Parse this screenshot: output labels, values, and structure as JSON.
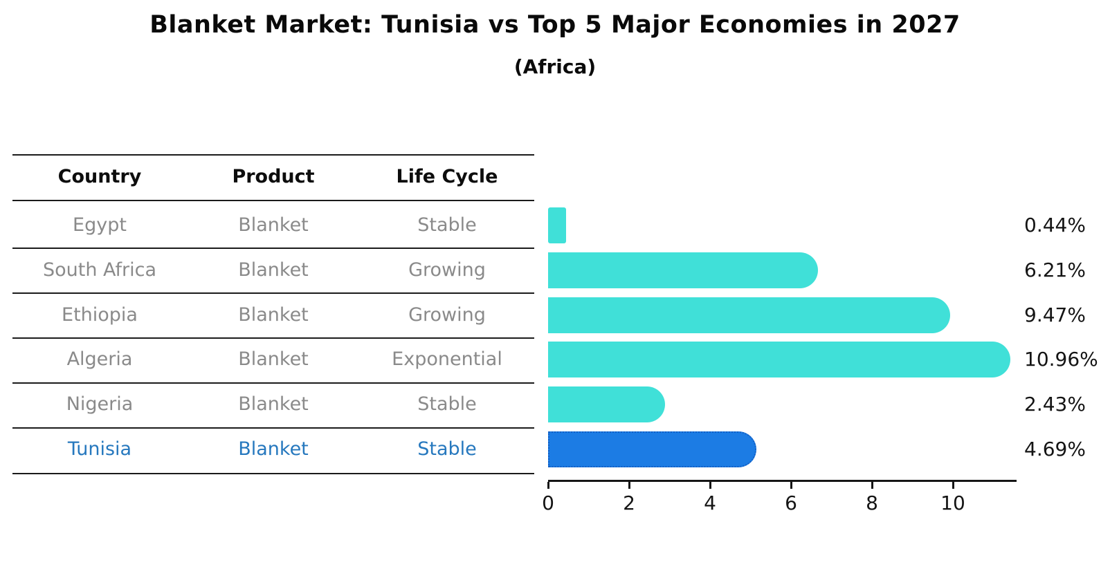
{
  "header": {
    "title": "Blanket Market: Tunisia vs Top 5 Major Economies in 2027",
    "subtitle": "(Africa)"
  },
  "table": {
    "columns": [
      "Country",
      "Product",
      "Life Cycle"
    ],
    "rows": [
      {
        "country": "Egypt",
        "product": "Blanket",
        "life_cycle": "Stable"
      },
      {
        "country": "South Africa",
        "product": "Blanket",
        "life_cycle": "Growing"
      },
      {
        "country": "Ethiopia",
        "product": "Blanket",
        "life_cycle": "Growing"
      },
      {
        "country": "Algeria",
        "product": "Blanket",
        "life_cycle": "Exponential"
      },
      {
        "country": "Nigeria",
        "product": "Blanket",
        "life_cycle": "Stable"
      },
      {
        "country": "Tunisia",
        "product": "Blanket",
        "life_cycle": "Stable"
      }
    ],
    "highlight_row": 5
  },
  "chart_data": {
    "type": "bar",
    "orientation": "horizontal",
    "title": "Blanket Market: Tunisia vs Top 5 Major Economies in 2027",
    "subtitle": "(Africa)",
    "categories": [
      "Egypt",
      "South Africa",
      "Ethiopia",
      "Algeria",
      "Nigeria",
      "Tunisia"
    ],
    "values": [
      0.44,
      6.21,
      9.47,
      10.96,
      2.43,
      4.69
    ],
    "value_labels": [
      "0.44%",
      "6.21%",
      "9.47%",
      "10.96%",
      "2.43%",
      "4.69%"
    ],
    "x_ticks": [
      "0",
      "2",
      "4",
      "6",
      "8",
      "10"
    ],
    "xlim": [
      0,
      11.5
    ],
    "grid": false,
    "legend": false,
    "highlight_index": 5,
    "colors": {
      "bar": "#40E0D8",
      "highlight_bar": "#1C7CE4",
      "highlight_border": "#135FC4",
      "highlight_text": "#2678BE",
      "row_text": "#8A8A8A",
      "text": "#141414"
    }
  }
}
